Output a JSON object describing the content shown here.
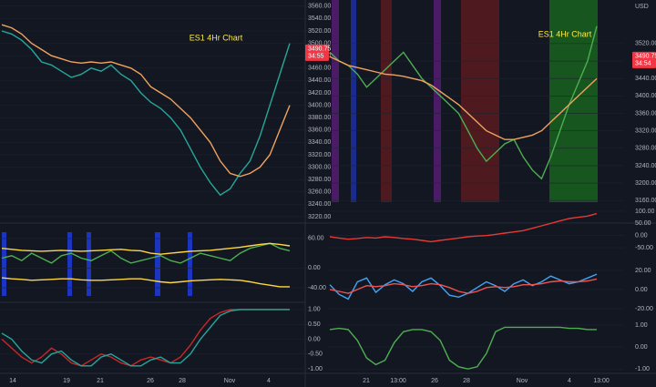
{
  "chart_data": [
    {
      "type": "line",
      "title": "ES1 4Hr Chart",
      "ylim": [
        3217,
        3570
      ],
      "yticks": [
        {
          "value": 3560,
          "label": "3560.00"
        },
        {
          "value": 3540,
          "label": "3540.00"
        },
        {
          "value": 3520,
          "label": "3520.00"
        },
        {
          "value": 3500,
          "label": "3500.00"
        },
        {
          "value": 3480,
          "label": "3480.00"
        },
        {
          "value": 3460,
          "label": "3460.00"
        },
        {
          "value": 3440,
          "label": "3440.00"
        },
        {
          "value": 3420,
          "label": "3420.00"
        },
        {
          "value": 3400,
          "label": "3400.00"
        },
        {
          "value": 3380,
          "label": "3380.00"
        },
        {
          "value": 3360,
          "label": "3360.00"
        },
        {
          "value": 3340,
          "label": "3340.00"
        },
        {
          "value": 3320,
          "label": "3320.00"
        },
        {
          "value": 3300,
          "label": "3300.00"
        },
        {
          "value": 3280,
          "label": "3280.00"
        },
        {
          "value": 3260,
          "label": "3260.00"
        },
        {
          "value": 3240,
          "label": "3240.00"
        },
        {
          "value": 3220,
          "label": "3220.00"
        }
      ],
      "price_label": {
        "value": 3490.75,
        "label": "3490.75"
      },
      "countdown": "34:55",
      "series": [
        {
          "name": "Price",
          "color": "#26a69a",
          "values": [
            3520,
            3515,
            3505,
            3490,
            3470,
            3465,
            3455,
            3445,
            3450,
            3460,
            3455,
            3465,
            3450,
            3440,
            3420,
            3405,
            3395,
            3380,
            3360,
            3330,
            3300,
            3275,
            3255,
            3265,
            3290,
            3310,
            3350,
            3400,
            3450,
            3500
          ]
        },
        {
          "name": "Band",
          "color": "#f0a35e",
          "values": [
            3530,
            3525,
            3515,
            3500,
            3490,
            3480,
            3475,
            3470,
            3468,
            3470,
            3468,
            3470,
            3465,
            3460,
            3450,
            3430,
            3420,
            3410,
            3395,
            3380,
            3360,
            3340,
            3310,
            3290,
            3285,
            3290,
            3300,
            3320,
            3360,
            3400
          ]
        }
      ]
    },
    {
      "type": "line",
      "ylim": [
        -66,
        82
      ],
      "yticks": [
        {
          "value": 60,
          "label": "60.00"
        },
        {
          "value": 0,
          "label": "0.00"
        },
        {
          "value": -40,
          "label": "-40.00"
        }
      ],
      "series": [
        {
          "name": "Oscillator",
          "color": "#4caf50",
          "values": [
            20,
            25,
            15,
            30,
            20,
            10,
            25,
            30,
            20,
            15,
            25,
            35,
            20,
            10,
            15,
            20,
            25,
            15,
            10,
            20,
            30,
            25,
            20,
            15,
            30,
            40,
            45,
            50,
            40,
            35
          ]
        },
        {
          "name": "Upper",
          "color": "#ffd740",
          "values": [
            40,
            38,
            36,
            35,
            34,
            35,
            36,
            35,
            34,
            35,
            36,
            37,
            38,
            36,
            35,
            30,
            28,
            30,
            32,
            34,
            35,
            36,
            38,
            40,
            42,
            45,
            48,
            50,
            48,
            45
          ]
        },
        {
          "name": "Lower",
          "color": "#ffd740",
          "values": [
            -20,
            -22,
            -23,
            -25,
            -24,
            -23,
            -22,
            -22,
            -24,
            -25,
            -25,
            -24,
            -23,
            -22,
            -22,
            -25,
            -28,
            -30,
            -28,
            -26,
            -25,
            -24,
            -23,
            -24,
            -25,
            -28,
            -32,
            -35,
            -38,
            -38
          ]
        }
      ]
    },
    {
      "type": "line",
      "ylim": [
        -1.15,
        1.15
      ],
      "yticks": [
        {
          "value": 1,
          "label": "1.00"
        },
        {
          "value": 0.5,
          "label": "0.50"
        },
        {
          "value": 0,
          "label": "0.00"
        },
        {
          "value": -0.5,
          "label": "-0.50"
        },
        {
          "value": -1,
          "label": "-1.00"
        }
      ],
      "x_labels": [
        "14",
        "19",
        "21",
        "26",
        "28",
        "Nov",
        "4"
      ],
      "series": [
        {
          "name": "Fast",
          "color": "#c62828",
          "values": [
            0,
            -0.3,
            -0.6,
            -0.8,
            -0.6,
            -0.3,
            -0.5,
            -0.8,
            -0.9,
            -0.7,
            -0.5,
            -0.6,
            -0.8,
            -0.9,
            -0.7,
            -0.6,
            -0.7,
            -0.8,
            -0.6,
            -0.2,
            0.3,
            0.7,
            0.9,
            1,
            1,
            1,
            1,
            1,
            1,
            1
          ]
        },
        {
          "name": "Slow",
          "color": "#26a69a",
          "values": [
            0.2,
            0,
            -0.4,
            -0.7,
            -0.8,
            -0.5,
            -0.4,
            -0.7,
            -0.9,
            -0.9,
            -0.6,
            -0.5,
            -0.7,
            -0.9,
            -0.9,
            -0.7,
            -0.6,
            -0.8,
            -0.8,
            -0.5,
            0,
            0.4,
            0.8,
            0.95,
            1,
            1,
            1,
            1,
            1,
            1
          ]
        }
      ]
    },
    {
      "type": "line",
      "title": "ES1 4Hr Chart",
      "unit": "USD",
      "ylim": [
        3150,
        3620
      ],
      "yticks": [
        {
          "value": 3520,
          "label": "3520.00"
        },
        {
          "value": 3480,
          "label": "3480.00"
        },
        {
          "value": 3440,
          "label": "3440.00"
        },
        {
          "value": 3400,
          "label": "3400.00"
        },
        {
          "value": 3360,
          "label": "3360.00"
        },
        {
          "value": 3320,
          "label": "3320.00"
        },
        {
          "value": 3280,
          "label": "3280.00"
        },
        {
          "value": 3240,
          "label": "3240.00"
        },
        {
          "value": 3200,
          "label": "3200.00"
        },
        {
          "value": 3160,
          "label": "3160.00"
        }
      ],
      "price_label": {
        "value": 3490.75,
        "label": "3490.75"
      },
      "countdown": "34:54",
      "series": [
        {
          "name": "Price",
          "color": "#4caf50",
          "values": [
            3500,
            3480,
            3470,
            3450,
            3420,
            3440,
            3460,
            3480,
            3500,
            3470,
            3440,
            3420,
            3400,
            3380,
            3360,
            3320,
            3280,
            3250,
            3270,
            3290,
            3300,
            3260,
            3230,
            3210,
            3260,
            3320,
            3380,
            3430,
            3480,
            3560
          ]
        },
        {
          "name": "Trend",
          "color": "#f0a35e",
          "values": [
            3490,
            3480,
            3470,
            3465,
            3460,
            3455,
            3450,
            3448,
            3445,
            3440,
            3435,
            3425,
            3410,
            3395,
            3380,
            3360,
            3340,
            3320,
            3310,
            3300,
            3300,
            3305,
            3310,
            3320,
            3340,
            3360,
            3380,
            3400,
            3420,
            3440
          ]
        }
      ]
    },
    {
      "type": "line",
      "ylim": [
        -61,
        126
      ],
      "yticks": [
        {
          "value": 100,
          "label": "100.00"
        },
        {
          "value": 50,
          "label": "50.00"
        },
        {
          "value": 0,
          "label": "0.00"
        },
        {
          "value": -50,
          "label": "-50.00"
        }
      ],
      "series": [
        {
          "name": "Momentum",
          "color": "#e53935",
          "values": [
            -5,
            -10,
            -15,
            -12,
            -8,
            -10,
            -5,
            -8,
            -12,
            -15,
            -20,
            -25,
            -20,
            -15,
            -10,
            -5,
            -2,
            0,
            5,
            10,
            15,
            20,
            30,
            40,
            50,
            60,
            70,
            75,
            80,
            90
          ]
        }
      ]
    },
    {
      "type": "line",
      "ylim": [
        -21,
        38
      ],
      "yticks": [
        {
          "value": 20,
          "label": "20.00"
        },
        {
          "value": 0,
          "label": "0.00"
        },
        {
          "value": -20,
          "label": "-20.00"
        }
      ],
      "series": [
        {
          "name": "Fast",
          "color": "#42a5f5",
          "values": [
            5,
            -5,
            -10,
            8,
            12,
            -3,
            5,
            10,
            6,
            -2,
            8,
            12,
            4,
            -6,
            -8,
            -4,
            2,
            8,
            4,
            -2,
            6,
            10,
            4,
            8,
            14,
            10,
            6,
            8,
            12,
            16
          ]
        },
        {
          "name": "Slow",
          "color": "#ef5350",
          "values": [
            0,
            -2,
            -4,
            0,
            4,
            3,
            4,
            6,
            5,
            3,
            4,
            6,
            5,
            2,
            -2,
            -4,
            -2,
            2,
            3,
            2,
            3,
            5,
            5,
            6,
            8,
            9,
            8,
            8,
            9,
            11
          ]
        }
      ]
    },
    {
      "type": "line",
      "ylim": [
        -1.2,
        1.5
      ],
      "yticks": [
        {
          "value": 1,
          "label": "1.00"
        },
        {
          "value": 0,
          "label": "0.00"
        },
        {
          "value": -1,
          "label": "-1.00"
        }
      ],
      "x_labels": [
        "21",
        "13:00",
        "26",
        "28",
        "Nov",
        "4",
        "13:00"
      ],
      "series": [
        {
          "name": "Cycle",
          "color": "#4caf50",
          "values": [
            0.8,
            0.85,
            0.8,
            0.3,
            -0.5,
            -0.8,
            -0.6,
            0.2,
            0.7,
            0.8,
            0.8,
            0.7,
            0.3,
            -0.6,
            -0.9,
            -1,
            -0.9,
            -0.3,
            0.7,
            0.9,
            0.9,
            0.9,
            0.9,
            0.9,
            0.9,
            0.9,
            0.85,
            0.85,
            0.8,
            0.8
          ]
        }
      ]
    }
  ]
}
